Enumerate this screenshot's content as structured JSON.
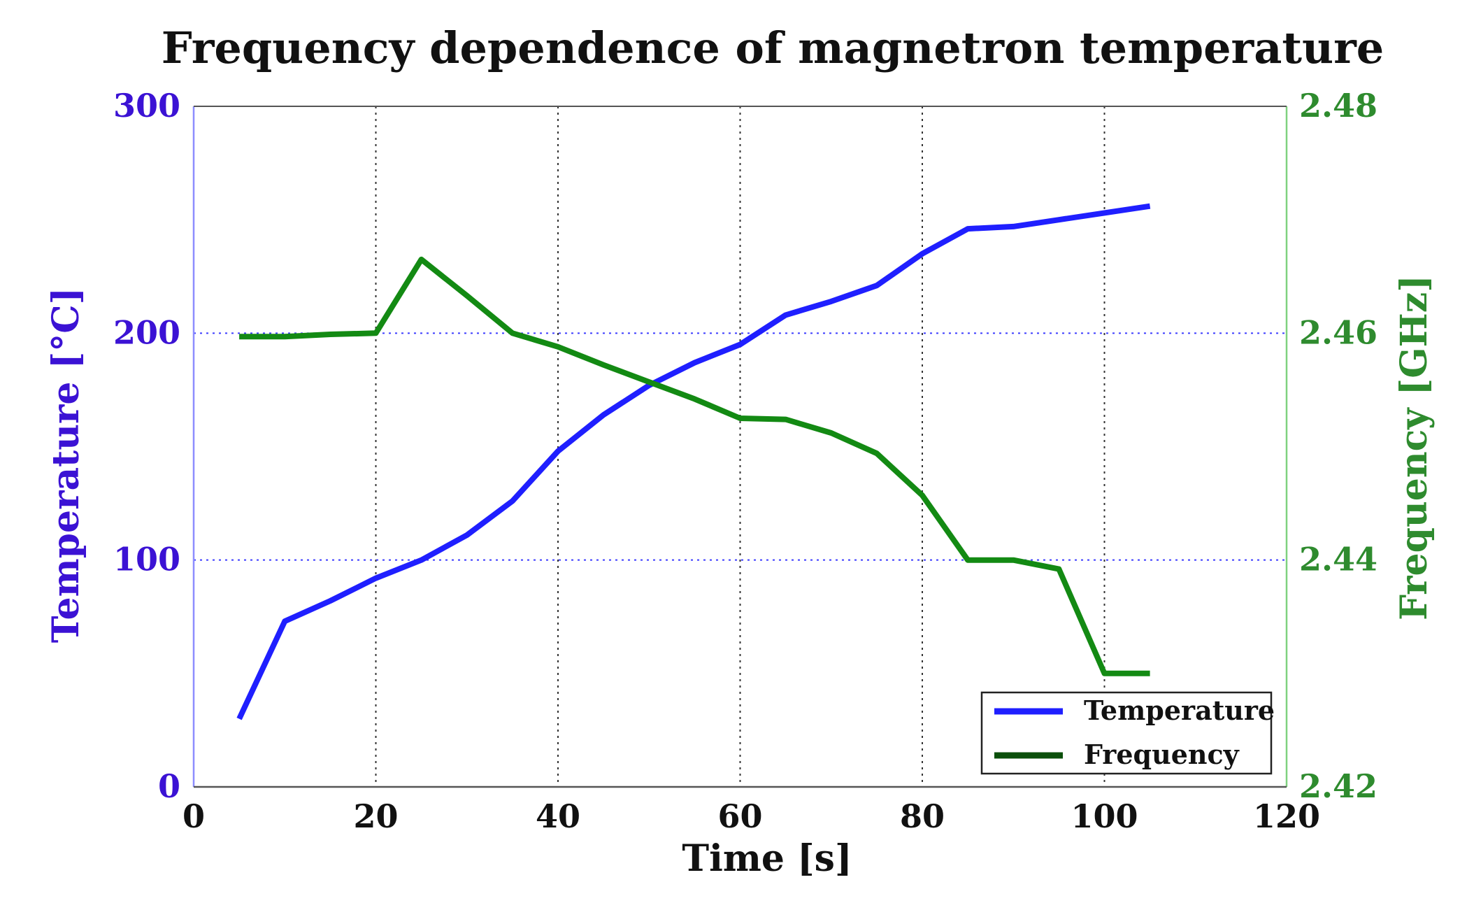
{
  "chart_data": {
    "type": "line",
    "title": "Frequency dependence of magnetron temperature",
    "xlabel": "Time [s]",
    "ylabel_left": "Temperature [°C]",
    "ylabel_right": "Frequency [GHz]",
    "xlim": [
      0,
      120
    ],
    "ylim_left": [
      0,
      300
    ],
    "ylim_right": [
      2.42,
      2.48
    ],
    "xticks": [
      "0",
      "20",
      "40",
      "60",
      "80",
      "100",
      "120"
    ],
    "xtick_values": [
      0,
      20,
      40,
      60,
      80,
      100,
      120
    ],
    "yticks_left": [
      "0",
      "100",
      "200",
      "300"
    ],
    "ytick_values_left": [
      0,
      100,
      200,
      300
    ],
    "yticks_right": [
      "2.42",
      "2.44",
      "2.46",
      "2.48"
    ],
    "ytick_values_right": [
      2.42,
      2.44,
      2.46,
      2.48
    ],
    "grid": true,
    "legend_position": "bottom-right",
    "series": [
      {
        "name": "Temperature",
        "axis": "left",
        "color": "#1f1fff",
        "x": [
          5,
          10,
          15,
          20,
          25,
          30,
          35,
          40,
          45,
          50,
          55,
          60,
          65,
          70,
          75,
          80,
          85,
          90,
          95,
          100,
          105
        ],
        "values": [
          30,
          73,
          82,
          92,
          100,
          111,
          126,
          148,
          164,
          177,
          187,
          195,
          208,
          214,
          221,
          235,
          246,
          247,
          250,
          253,
          256
        ]
      },
      {
        "name": "Frequency",
        "axis": "right",
        "color": "#138a13",
        "x": [
          5,
          10,
          15,
          20,
          25,
          30,
          35,
          40,
          45,
          50,
          55,
          60,
          65,
          70,
          75,
          80,
          85,
          90,
          95,
          100,
          105
        ],
        "values": [
          2.4597,
          2.4597,
          2.4599,
          2.46,
          2.4665,
          2.4633,
          2.46,
          2.4588,
          2.4572,
          2.4557,
          2.4542,
          2.4525,
          2.4524,
          2.4512,
          2.4494,
          2.4457,
          2.44,
          2.44,
          2.4392,
          2.43,
          2.43
        ]
      }
    ],
    "colors": {
      "left_axis": "#3b12d4",
      "right_axis": "#2e8b2e",
      "grid_horizontal": "#3b3bff",
      "grid_vertical": "#333333",
      "right_spine": "#7fd17f",
      "left_spine": "#8d8dff",
      "legend_frequency_line": "#0b4f0b"
    }
  }
}
